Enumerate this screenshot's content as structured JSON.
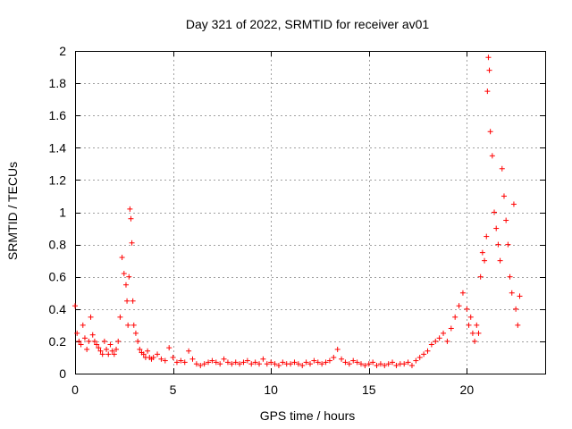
{
  "chart_data": {
    "type": "scatter",
    "title": "Day 321 of 2022, SRMTID for receiver av01",
    "xlabel": "GPS time / hours",
    "ylabel": "SRMTID / TECUs",
    "xlim": [
      0,
      24
    ],
    "ylim": [
      0,
      2
    ],
    "xticks": [
      0,
      5,
      10,
      15,
      20
    ],
    "xtick_labels": [
      "0",
      "5",
      "10",
      "15",
      "20"
    ],
    "yticks": [
      0,
      0.2,
      0.4,
      0.6,
      0.8,
      1,
      1.2,
      1.4,
      1.6,
      1.8,
      2
    ],
    "ytick_labels": [
      "0",
      "0.2",
      "0.4",
      "0.6",
      "0.8",
      "1",
      "1.2",
      "1.4",
      "1.6",
      "1.8",
      "2"
    ],
    "grid": true,
    "marker": "+",
    "color": "#ff0000",
    "series": [
      {
        "name": "SRMTID",
        "x": [
          0.0,
          0.1,
          0.2,
          0.3,
          0.4,
          0.5,
          0.6,
          0.7,
          0.8,
          0.9,
          1.0,
          1.1,
          1.2,
          1.3,
          1.4,
          1.5,
          1.6,
          1.7,
          1.8,
          1.9,
          2.0,
          2.1,
          2.2,
          2.3,
          2.4,
          2.5,
          2.6,
          2.65,
          2.7,
          2.75,
          2.8,
          2.85,
          2.9,
          2.95,
          3.0,
          3.1,
          3.2,
          3.3,
          3.4,
          3.5,
          3.6,
          3.7,
          3.8,
          3.9,
          4.0,
          4.2,
          4.4,
          4.6,
          4.8,
          5.0,
          5.2,
          5.4,
          5.6,
          5.8,
          6.0,
          6.2,
          6.4,
          6.6,
          6.8,
          7.0,
          7.2,
          7.4,
          7.6,
          7.8,
          8.0,
          8.2,
          8.4,
          8.6,
          8.8,
          9.0,
          9.2,
          9.4,
          9.6,
          9.8,
          10.0,
          10.2,
          10.4,
          10.6,
          10.8,
          11.0,
          11.2,
          11.4,
          11.6,
          11.8,
          12.0,
          12.2,
          12.4,
          12.6,
          12.8,
          13.0,
          13.2,
          13.4,
          13.6,
          13.8,
          14.0,
          14.2,
          14.4,
          14.6,
          14.8,
          15.0,
          15.2,
          15.4,
          15.6,
          15.8,
          16.0,
          16.2,
          16.4,
          16.6,
          16.8,
          17.0,
          17.2,
          17.4,
          17.6,
          17.8,
          18.0,
          18.2,
          18.4,
          18.6,
          18.8,
          19.0,
          19.2,
          19.4,
          19.6,
          19.8,
          20.0,
          20.1,
          20.2,
          20.3,
          20.4,
          20.5,
          20.6,
          20.7,
          20.8,
          20.9,
          21.0,
          21.05,
          21.1,
          21.15,
          21.2,
          21.3,
          21.4,
          21.5,
          21.6,
          21.7,
          21.8,
          21.9,
          22.0,
          22.1,
          22.2,
          22.3,
          22.4,
          22.5,
          22.6,
          22.7
        ],
        "y": [
          0.42,
          0.25,
          0.2,
          0.18,
          0.3,
          0.22,
          0.15,
          0.2,
          0.35,
          0.24,
          0.2,
          0.18,
          0.16,
          0.14,
          0.12,
          0.2,
          0.15,
          0.12,
          0.18,
          0.14,
          0.12,
          0.15,
          0.2,
          0.35,
          0.72,
          0.62,
          0.55,
          0.45,
          0.3,
          0.6,
          1.02,
          0.96,
          0.81,
          0.45,
          0.3,
          0.25,
          0.2,
          0.15,
          0.13,
          0.12,
          0.1,
          0.14,
          0.1,
          0.09,
          0.1,
          0.12,
          0.09,
          0.08,
          0.16,
          0.1,
          0.07,
          0.08,
          0.07,
          0.14,
          0.09,
          0.06,
          0.05,
          0.06,
          0.07,
          0.08,
          0.07,
          0.06,
          0.09,
          0.07,
          0.06,
          0.07,
          0.06,
          0.07,
          0.08,
          0.06,
          0.07,
          0.06,
          0.09,
          0.06,
          0.07,
          0.06,
          0.05,
          0.07,
          0.06,
          0.06,
          0.07,
          0.06,
          0.05,
          0.07,
          0.06,
          0.08,
          0.07,
          0.06,
          0.07,
          0.08,
          0.1,
          0.15,
          0.09,
          0.07,
          0.06,
          0.08,
          0.07,
          0.06,
          0.05,
          0.06,
          0.07,
          0.05,
          0.06,
          0.05,
          0.06,
          0.07,
          0.05,
          0.06,
          0.06,
          0.07,
          0.05,
          0.08,
          0.1,
          0.12,
          0.14,
          0.18,
          0.2,
          0.22,
          0.25,
          0.2,
          0.28,
          0.35,
          0.42,
          0.5,
          0.4,
          0.3,
          0.35,
          0.25,
          0.2,
          0.3,
          0.25,
          0.6,
          0.75,
          0.7,
          0.85,
          1.75,
          1.96,
          1.88,
          1.5,
          1.35,
          1.0,
          0.9,
          0.8,
          0.7,
          1.27,
          1.1,
          0.95,
          0.8,
          0.6,
          0.5,
          1.05,
          0.4,
          0.3,
          0.48
        ]
      }
    ]
  }
}
